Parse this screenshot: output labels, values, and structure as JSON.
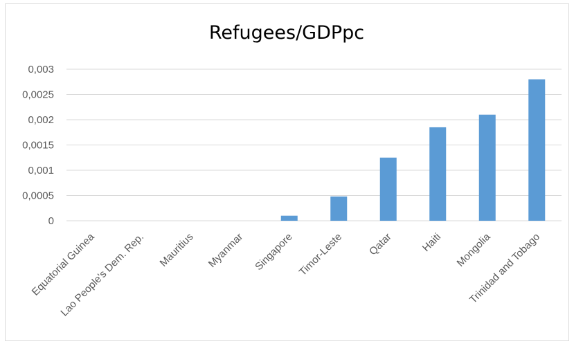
{
  "chart_data": {
    "type": "bar",
    "title": "Refugees/GDPpc",
    "xlabel": "",
    "ylabel": "",
    "categories": [
      "Equatorial Guinea",
      "Lao People's Dem. Rep.",
      "Mauritius",
      "Myanmar",
      "Singapore",
      "Timor-Leste",
      "Qatar",
      "Haiti",
      "Mongolia",
      "Trinidad and Tobago"
    ],
    "values": [
      0,
      0,
      0,
      0,
      0.0001,
      0.00048,
      0.00125,
      0.00185,
      0.0021,
      0.0028
    ],
    "ylim": [
      0,
      0.003
    ],
    "yticks": [
      "0",
      "0,0005",
      "0,001",
      "0,0015",
      "0,002",
      "0,0025",
      "0,003"
    ],
    "grid": true,
    "legend": "none",
    "bar_color": "#5b9bd5"
  }
}
